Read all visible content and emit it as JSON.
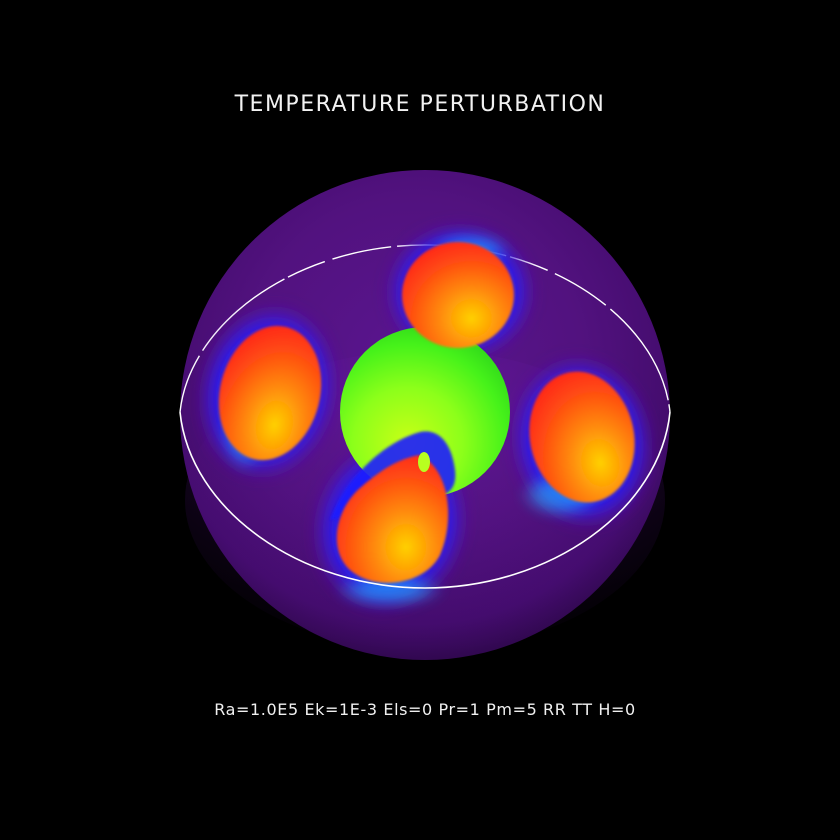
{
  "figure": {
    "title": "TEMPERATURE PERTURBATION",
    "parameters": "Ra=1.0E5 Ek=1E-3 Els=0 Pr=1 Pm=5 RR TT H=0"
  },
  "colors": {
    "background": "#000000",
    "outer_shell": "#4a0d78",
    "inner_core": "#7cff1a",
    "hot_plume": "#ff4a16",
    "cold_halo": "#1a2bff",
    "equator_ring": "#ffffff"
  },
  "objects": {
    "outer_shell": "outer-sphere",
    "inner_core": "inner-core-sphere",
    "plumes": [
      "hot-plume",
      "hot-plume",
      "hot-plume",
      "hot-plume"
    ],
    "equator": "equator-ring"
  }
}
